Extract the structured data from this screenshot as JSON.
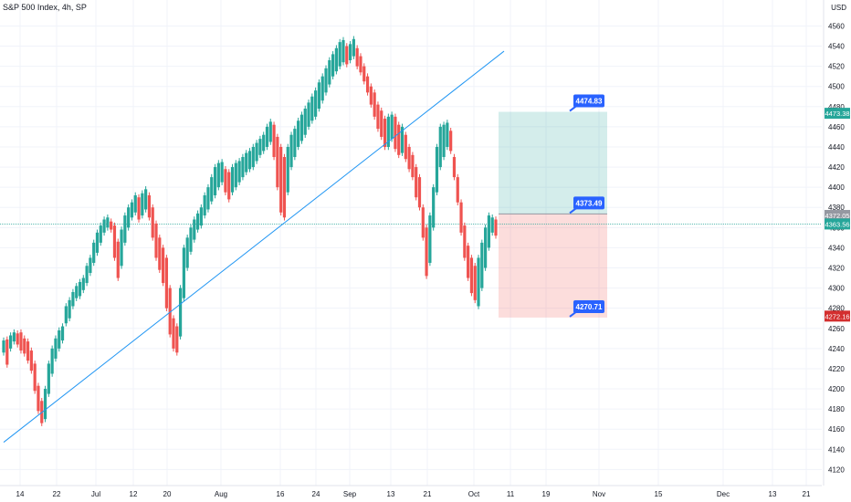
{
  "header": {
    "title": "S&P 500 Index, 4h, SP",
    "currency": "USD"
  },
  "colors": {
    "up": "#26a69a",
    "down": "#ef5350",
    "grid": "#f0f3fa",
    "trendline": "#2196f3",
    "blue_label": "#2962ff",
    "target_zone": "rgba(38,166,154,0.2)",
    "stop_zone": "rgba(239,83,80,0.2)"
  },
  "chart_data": {
    "type": "candlestick",
    "title": "S&P 500 Index, 4h, SP",
    "ylim": [
      4114,
      4574
    ],
    "y_ticks": [
      4120,
      4140,
      4160,
      4180,
      4200,
      4220,
      4240,
      4260,
      4280,
      4300,
      4320,
      4340,
      4360,
      4380,
      4400,
      4420,
      4440,
      4460,
      4480,
      4500,
      4520,
      4540,
      4560
    ],
    "x_ticks": [
      "14",
      "22",
      "Jul",
      "12",
      "20",
      "Aug",
      "16",
      "24",
      "Sep",
      "13",
      "21",
      "Oct",
      "11",
      "19",
      "Nov",
      "15",
      "Dec",
      "13",
      "21"
    ],
    "price_range_series": [
      [
        4236,
        4248
      ],
      [
        4224,
        4249
      ],
      [
        4240,
        4253
      ],
      [
        4247,
        4256
      ],
      [
        4244,
        4255
      ],
      [
        4238,
        4256
      ],
      [
        4235,
        4250
      ],
      [
        4228,
        4247
      ],
      [
        4218,
        4238
      ],
      [
        4198,
        4225
      ],
      [
        4178,
        4203
      ],
      [
        4166,
        4188
      ],
      [
        4170,
        4200
      ],
      [
        4195,
        4225
      ],
      [
        4215,
        4240
      ],
      [
        4230,
        4250
      ],
      [
        4240,
        4258
      ],
      [
        4248,
        4262
      ],
      [
        4265,
        4282
      ],
      [
        4270,
        4288
      ],
      [
        4282,
        4296
      ],
      [
        4290,
        4302
      ],
      [
        4292,
        4306
      ],
      [
        4298,
        4310
      ],
      [
        4305,
        4322
      ],
      [
        4315,
        4330
      ],
      [
        4325,
        4345
      ],
      [
        4335,
        4355
      ],
      [
        4345,
        4362
      ],
      [
        4355,
        4368
      ],
      [
        4360,
        4370
      ],
      [
        4358,
        4366
      ],
      [
        4330,
        4362
      ],
      [
        4310,
        4346
      ],
      [
        4322,
        4358
      ],
      [
        4345,
        4372
      ],
      [
        4360,
        4380
      ],
      [
        4370,
        4385
      ],
      [
        4375,
        4392
      ],
      [
        4368,
        4390
      ],
      [
        4372,
        4394
      ],
      [
        4378,
        4398
      ],
      [
        4370,
        4392
      ],
      [
        4350,
        4380
      ],
      [
        4330,
        4364
      ],
      [
        4318,
        4350
      ],
      [
        4305,
        4340
      ],
      [
        4280,
        4330
      ],
      [
        4254,
        4300
      ],
      [
        4240,
        4270
      ],
      [
        4236,
        4262
      ],
      [
        4252,
        4300
      ],
      [
        4290,
        4340
      ],
      [
        4320,
        4350
      ],
      [
        4336,
        4360
      ],
      [
        4348,
        4368
      ],
      [
        4358,
        4374
      ],
      [
        4362,
        4380
      ],
      [
        4372,
        4392
      ],
      [
        4378,
        4400
      ],
      [
        4386,
        4410
      ],
      [
        4392,
        4420
      ],
      [
        4400,
        4424
      ],
      [
        4405,
        4425
      ],
      [
        4395,
        4418
      ],
      [
        4388,
        4415
      ],
      [
        4395,
        4420
      ],
      [
        4400,
        4424
      ],
      [
        4405,
        4426
      ],
      [
        4410,
        4430
      ],
      [
        4415,
        4434
      ],
      [
        4418,
        4436
      ],
      [
        4420,
        4440
      ],
      [
        4426,
        4444
      ],
      [
        4432,
        4448
      ],
      [
        4436,
        4452
      ],
      [
        4440,
        4460
      ],
      [
        4445,
        4465
      ],
      [
        4430,
        4462
      ],
      [
        4400,
        4450
      ],
      [
        4375,
        4440
      ],
      [
        4370,
        4430
      ],
      [
        4395,
        4440
      ],
      [
        4420,
        4452
      ],
      [
        4430,
        4458
      ],
      [
        4440,
        4466
      ],
      [
        4446,
        4472
      ],
      [
        4452,
        4478
      ],
      [
        4460,
        4484
      ],
      [
        4466,
        4490
      ],
      [
        4470,
        4496
      ],
      [
        4478,
        4504
      ],
      [
        4486,
        4510
      ],
      [
        4494,
        4518
      ],
      [
        4502,
        4526
      ],
      [
        4510,
        4532
      ],
      [
        4515,
        4538
      ],
      [
        4520,
        4544
      ],
      [
        4524,
        4546
      ],
      [
        4522,
        4540
      ],
      [
        4526,
        4542
      ],
      [
        4530,
        4547
      ],
      [
        4520,
        4538
      ],
      [
        4514,
        4530
      ],
      [
        4505,
        4520
      ],
      [
        4494,
        4510
      ],
      [
        4482,
        4500
      ],
      [
        4470,
        4494
      ],
      [
        4458,
        4482
      ],
      [
        4450,
        4476
      ],
      [
        4440,
        4468
      ],
      [
        4440,
        4470
      ],
      [
        4448,
        4472
      ],
      [
        4438,
        4470
      ],
      [
        4432,
        4462
      ],
      [
        4434,
        4460
      ],
      [
        4428,
        4452
      ],
      [
        4418,
        4440
      ],
      [
        4410,
        4432
      ],
      [
        4390,
        4420
      ],
      [
        4380,
        4410
      ],
      [
        4350,
        4380
      ],
      [
        4312,
        4360
      ],
      [
        4325,
        4372
      ],
      [
        4360,
        4400
      ],
      [
        4395,
        4440
      ],
      [
        4420,
        4460
      ],
      [
        4430,
        4462
      ],
      [
        4440,
        4464
      ],
      [
        4436,
        4456
      ],
      [
        4410,
        4430
      ],
      [
        4385,
        4410
      ],
      [
        4355,
        4385
      ],
      [
        4330,
        4362
      ],
      [
        4310,
        4342
      ],
      [
        4295,
        4330
      ],
      [
        4288,
        4322
      ],
      [
        4282,
        4330
      ],
      [
        4300,
        4345
      ],
      [
        4320,
        4360
      ],
      [
        4340,
        4372
      ],
      [
        4355,
        4370
      ],
      [
        4352,
        4368
      ]
    ],
    "trendline": {
      "from": [
        "14 Jun",
        4147
      ],
      "to": [
        "8 Oct",
        4535
      ]
    },
    "levels": {
      "target_label": "4474.83",
      "entry_label": "4373.49",
      "stop_label": "4270.71",
      "axis_target": "4473.38",
      "axis_current": "4372.05",
      "axis_last": "4363.56",
      "axis_stop": "4272.16"
    }
  }
}
